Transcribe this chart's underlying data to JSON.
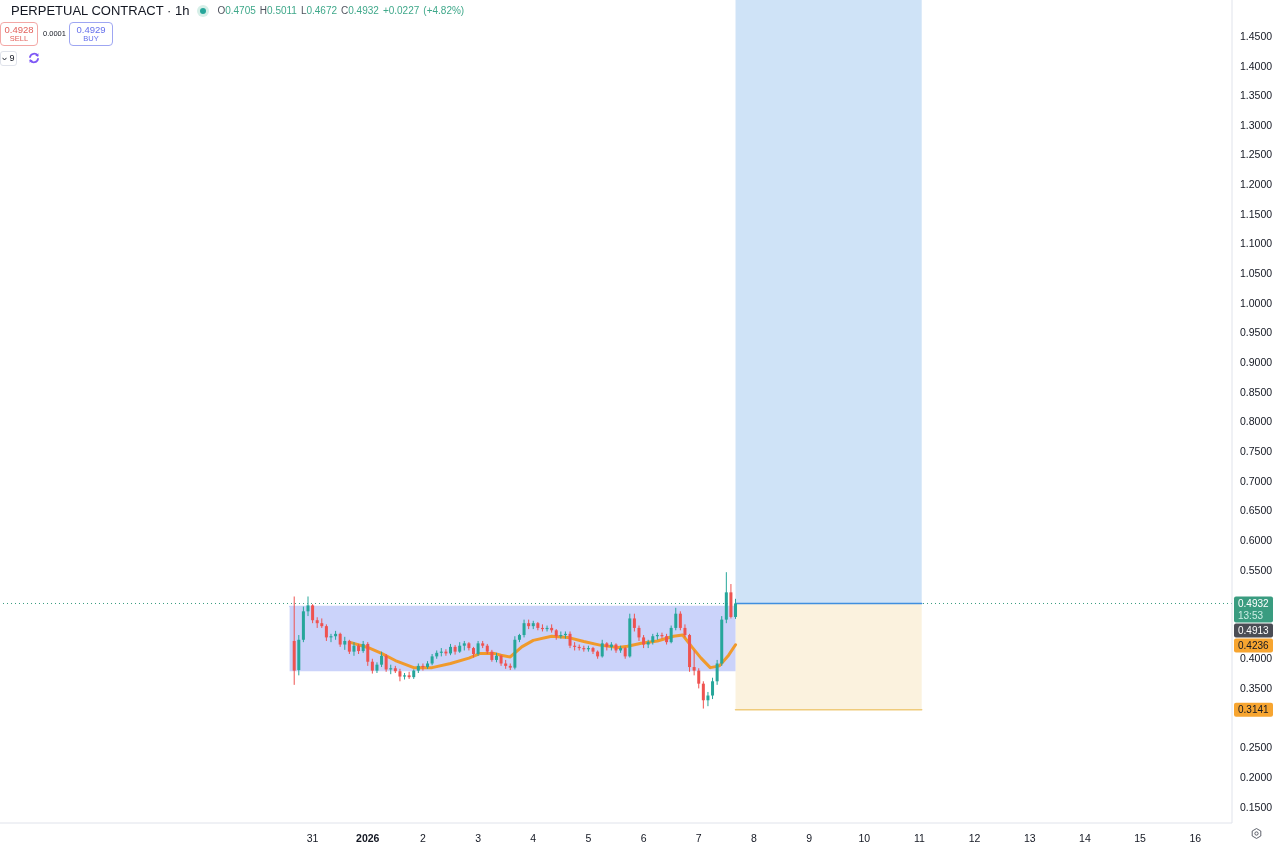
{
  "chart_data": {
    "type": "candlestick",
    "title": "PERPETUAL CONTRACT · 1h",
    "x": [
      "2025-12-30T16:00",
      "2025-12-30T18:00",
      "2025-12-30T20:00",
      "2025-12-30T22:00",
      "2025-12-31T00:00",
      "2025-12-31T02:00",
      "2025-12-31T04:00",
      "2025-12-31T06:00",
      "2025-12-31T08:00",
      "2025-12-31T10:00",
      "2025-12-31T12:00",
      "2025-12-31T14:00",
      "2025-12-31T16:00",
      "2025-12-31T18:00",
      "2025-12-31T20:00",
      "2025-12-31T22:00",
      "2026-01-01T00:00",
      "2026-01-01T02:00",
      "2026-01-01T04:00",
      "2026-01-01T06:00",
      "2026-01-01T08:00",
      "2026-01-01T10:00",
      "2026-01-01T12:00",
      "2026-01-01T14:00",
      "2026-01-01T16:00",
      "2026-01-01T18:00",
      "2026-01-01T20:00",
      "2026-01-01T22:00",
      "2026-01-02T00:00",
      "2026-01-02T02:00",
      "2026-01-02T04:00",
      "2026-01-02T06:00",
      "2026-01-02T08:00",
      "2026-01-02T10:00",
      "2026-01-02T12:00",
      "2026-01-02T14:00",
      "2026-01-02T16:00",
      "2026-01-02T18:00",
      "2026-01-02T20:00",
      "2026-01-02T22:00",
      "2026-01-03T00:00",
      "2026-01-03T02:00",
      "2026-01-03T04:00",
      "2026-01-03T06:00",
      "2026-01-03T08:00",
      "2026-01-03T10:00",
      "2026-01-03T12:00",
      "2026-01-03T14:00",
      "2026-01-03T16:00",
      "2026-01-03T18:00",
      "2026-01-03T20:00",
      "2026-01-03T22:00",
      "2026-01-04T00:00",
      "2026-01-04T02:00",
      "2026-01-04T04:00",
      "2026-01-04T06:00",
      "2026-01-04T08:00",
      "2026-01-04T10:00",
      "2026-01-04T12:00",
      "2026-01-04T14:00",
      "2026-01-04T16:00",
      "2026-01-04T18:00",
      "2026-01-04T20:00",
      "2026-01-04T22:00",
      "2026-01-05T00:00",
      "2026-01-05T02:00",
      "2026-01-05T04:00",
      "2026-01-05T06:00",
      "2026-01-05T08:00",
      "2026-01-05T10:00",
      "2026-01-05T12:00",
      "2026-01-05T14:00",
      "2026-01-05T16:00",
      "2026-01-05T18:00",
      "2026-01-05T20:00",
      "2026-01-05T22:00",
      "2026-01-06T00:00",
      "2026-01-06T02:00",
      "2026-01-06T04:00",
      "2026-01-06T06:00",
      "2026-01-06T08:00",
      "2026-01-06T10:00",
      "2026-01-06T12:00",
      "2026-01-06T14:00",
      "2026-01-06T16:00",
      "2026-01-06T18:00",
      "2026-01-06T20:00",
      "2026-01-06T22:00",
      "2026-01-07T00:00",
      "2026-01-07T02:00",
      "2026-01-07T04:00",
      "2026-01-07T06:00",
      "2026-01-07T08:00",
      "2026-01-07T10:00",
      "2026-01-07T12:00",
      "2026-01-07T14:00",
      "2026-01-07T16:00"
    ],
    "ohlc": [
      [
        0.43,
        0.505,
        0.356,
        0.38
      ],
      [
        0.381,
        0.44,
        0.372,
        0.432
      ],
      [
        0.432,
        0.488,
        0.428,
        0.48
      ],
      [
        0.48,
        0.505,
        0.472,
        0.49
      ],
      [
        0.49,
        0.492,
        0.46,
        0.465
      ],
      [
        0.465,
        0.47,
        0.452,
        0.46
      ],
      [
        0.46,
        0.468,
        0.452,
        0.455
      ],
      [
        0.455,
        0.458,
        0.43,
        0.436
      ],
      [
        0.436,
        0.442,
        0.428,
        0.438
      ],
      [
        0.438,
        0.447,
        0.432,
        0.442
      ],
      [
        0.442,
        0.444,
        0.42,
        0.424
      ],
      [
        0.424,
        0.437,
        0.415,
        0.43
      ],
      [
        0.43,
        0.432,
        0.408,
        0.412
      ],
      [
        0.412,
        0.428,
        0.405,
        0.422
      ],
      [
        0.422,
        0.425,
        0.408,
        0.413
      ],
      [
        0.413,
        0.43,
        0.41,
        0.425
      ],
      [
        0.425,
        0.428,
        0.388,
        0.395
      ],
      [
        0.395,
        0.4,
        0.375,
        0.38
      ],
      [
        0.38,
        0.394,
        0.376,
        0.39
      ],
      [
        0.39,
        0.412,
        0.386,
        0.405
      ],
      [
        0.405,
        0.408,
        0.378,
        0.382
      ],
      [
        0.382,
        0.39,
        0.374,
        0.384
      ],
      [
        0.384,
        0.388,
        0.376,
        0.379
      ],
      [
        0.379,
        0.383,
        0.362,
        0.37
      ],
      [
        0.37,
        0.376,
        0.365,
        0.372
      ],
      [
        0.372,
        0.378,
        0.366,
        0.369
      ],
      [
        0.369,
        0.382,
        0.366,
        0.38
      ],
      [
        0.38,
        0.392,
        0.376,
        0.388
      ],
      [
        0.388,
        0.392,
        0.38,
        0.386
      ],
      [
        0.386,
        0.396,
        0.383,
        0.392
      ],
      [
        0.392,
        0.408,
        0.389,
        0.404
      ],
      [
        0.404,
        0.414,
        0.4,
        0.41
      ],
      [
        0.41,
        0.418,
        0.404,
        0.412
      ],
      [
        0.412,
        0.416,
        0.405,
        0.409
      ],
      [
        0.409,
        0.425,
        0.406,
        0.42
      ],
      [
        0.42,
        0.423,
        0.407,
        0.412
      ],
      [
        0.412,
        0.428,
        0.41,
        0.422
      ],
      [
        0.422,
        0.43,
        0.414,
        0.426
      ],
      [
        0.426,
        0.428,
        0.414,
        0.418
      ],
      [
        0.418,
        0.42,
        0.402,
        0.408
      ],
      [
        0.408,
        0.43,
        0.405,
        0.426
      ],
      [
        0.426,
        0.43,
        0.418,
        0.422
      ],
      [
        0.422,
        0.425,
        0.408,
        0.412
      ],
      [
        0.412,
        0.415,
        0.395,
        0.398
      ],
      [
        0.398,
        0.41,
        0.394,
        0.405
      ],
      [
        0.405,
        0.407,
        0.388,
        0.392
      ],
      [
        0.392,
        0.398,
        0.383,
        0.388
      ],
      [
        0.388,
        0.392,
        0.381,
        0.385
      ],
      [
        0.385,
        0.438,
        0.382,
        0.432
      ],
      [
        0.432,
        0.442,
        0.428,
        0.44
      ],
      [
        0.44,
        0.466,
        0.436,
        0.46
      ],
      [
        0.46,
        0.466,
        0.45,
        0.455
      ],
      [
        0.455,
        0.464,
        0.45,
        0.46
      ],
      [
        0.46,
        0.462,
        0.448,
        0.452
      ],
      [
        0.452,
        0.458,
        0.446,
        0.45
      ],
      [
        0.45,
        0.456,
        0.446,
        0.452
      ],
      [
        0.452,
        0.458,
        0.444,
        0.448
      ],
      [
        0.448,
        0.45,
        0.432,
        0.438
      ],
      [
        0.438,
        0.446,
        0.434,
        0.44
      ],
      [
        0.44,
        0.446,
        0.434,
        0.442
      ],
      [
        0.442,
        0.446,
        0.418,
        0.422
      ],
      [
        0.422,
        0.428,
        0.414,
        0.42
      ],
      [
        0.42,
        0.424,
        0.414,
        0.418
      ],
      [
        0.418,
        0.422,
        0.412,
        0.416
      ],
      [
        0.416,
        0.422,
        0.412,
        0.418
      ],
      [
        0.418,
        0.42,
        0.408,
        0.412
      ],
      [
        0.412,
        0.414,
        0.4,
        0.404
      ],
      [
        0.404,
        0.432,
        0.402,
        0.426
      ],
      [
        0.426,
        0.428,
        0.414,
        0.42
      ],
      [
        0.42,
        0.428,
        0.414,
        0.424
      ],
      [
        0.424,
        0.426,
        0.41,
        0.414
      ],
      [
        0.414,
        0.422,
        0.41,
        0.418
      ],
      [
        0.418,
        0.42,
        0.4,
        0.404
      ],
      [
        0.404,
        0.476,
        0.402,
        0.468
      ],
      [
        0.468,
        0.476,
        0.446,
        0.452
      ],
      [
        0.452,
        0.456,
        0.43,
        0.436
      ],
      [
        0.436,
        0.44,
        0.418,
        0.424
      ],
      [
        0.424,
        0.432,
        0.418,
        0.428
      ],
      [
        0.428,
        0.442,
        0.424,
        0.438
      ],
      [
        0.438,
        0.444,
        0.432,
        0.44
      ],
      [
        0.44,
        0.444,
        0.434,
        0.438
      ],
      [
        0.438,
        0.442,
        0.424,
        0.428
      ],
      [
        0.428,
        0.456,
        0.426,
        0.452
      ],
      [
        0.452,
        0.486,
        0.448,
        0.476
      ],
      [
        0.476,
        0.48,
        0.448,
        0.452
      ],
      [
        0.452,
        0.458,
        0.436,
        0.44
      ],
      [
        0.44,
        0.442,
        0.378,
        0.386
      ],
      [
        0.386,
        0.414,
        0.372,
        0.38
      ],
      [
        0.38,
        0.384,
        0.35,
        0.358
      ],
      [
        0.358,
        0.362,
        0.316,
        0.33
      ],
      [
        0.33,
        0.344,
        0.32,
        0.338
      ],
      [
        0.338,
        0.368,
        0.332,
        0.362
      ],
      [
        0.362,
        0.398,
        0.356,
        0.392
      ],
      [
        0.392,
        0.472,
        0.388,
        0.466
      ],
      [
        0.466,
        0.546,
        0.46,
        0.512
      ],
      [
        0.512,
        0.526,
        0.468,
        0.4705
      ],
      [
        0.4705,
        0.5011,
        0.4672,
        0.4932
      ]
    ],
    "series": [
      {
        "type": "line",
        "color": "#f09a2c",
        "x": [
          "2025-12-31T16:00",
          "2026-01-01T00:00",
          "2026-01-01T06:00",
          "2026-01-01T12:00",
          "2026-01-01T20:00",
          "2026-01-02T04:00",
          "2026-01-02T12:00",
          "2026-01-02T20:00",
          "2026-01-03T01:00",
          "2026-01-03T07:00",
          "2026-01-03T10:00",
          "2026-01-03T14:00",
          "2026-01-03T19:00",
          "2026-01-04T00:00",
          "2026-01-04T08:00",
          "2026-01-04T15:00",
          "2026-01-04T22:00",
          "2026-01-05T05:00",
          "2026-01-05T13:00",
          "2026-01-05T17:00",
          "2026-01-05T23:00",
          "2026-01-06T06:00",
          "2026-01-06T13:00",
          "2026-01-06T17:00",
          "2026-01-06T21:00",
          "2026-01-07T01:00",
          "2026-01-07T05:00",
          "2026-01-07T09:00",
          "2026-01-07T13:00",
          "2026-01-07T16:00"
        ],
        "values": [
          0.428,
          0.419,
          0.409,
          0.397,
          0.385,
          0.385,
          0.392,
          0.401,
          0.409,
          0.409,
          0.406,
          0.403,
          0.42,
          0.431,
          0.438,
          0.436,
          0.429,
          0.423,
          0.419,
          0.421,
          0.426,
          0.43,
          0.438,
          0.44,
          0.42,
          0.401,
          0.385,
          0.388,
          0.406,
          0.4236
        ]
      },
      {
        "type": "line",
        "color": "#3f8fdf",
        "x": [
          "2026-01-07T16:00",
          "2026-01-11T01:00"
        ],
        "values": [
          0.4932,
          0.4932
        ],
        "lower": [
          0.4932,
          0.4932
        ],
        "upper": [
          1.511,
          1.511
        ]
      },
      {
        "type": "line",
        "color": "#efcb7b",
        "x": [
          "2026-01-07T16:00",
          "2026-01-11T01:00"
        ],
        "values": [
          0.3141,
          0.3141
        ],
        "lower": [
          0.3141,
          0.3141
        ],
        "upper": [
          0.4932,
          0.4932
        ]
      },
      {
        "type": "line",
        "color": "#cbd3fa",
        "x": [
          "2025-12-30T14:00",
          "2026-01-07T16:00"
        ],
        "values": [
          0.488,
          0.488
        ],
        "lower": [
          0.379,
          0.379
        ],
        "upper": [
          0.488,
          0.488
        ]
      }
    ],
    "xlim": [
      "2025-12-25T08:00",
      "2026-01-16T16:00"
    ],
    "xticks": [
      {
        "value": "2025-12-31",
        "label": "31"
      },
      {
        "value": "2026-01-01",
        "label": "2026"
      },
      {
        "value": "2026-01-02",
        "label": "2"
      },
      {
        "value": "2026-01-03",
        "label": "3"
      },
      {
        "value": "2026-01-04",
        "label": "4"
      },
      {
        "value": "2026-01-05",
        "label": "5"
      },
      {
        "value": "2026-01-06",
        "label": "6"
      },
      {
        "value": "2026-01-07",
        "label": "7"
      },
      {
        "value": "2026-01-08",
        "label": "8"
      },
      {
        "value": "2026-01-09",
        "label": "9"
      },
      {
        "value": "2026-01-10",
        "label": "10"
      },
      {
        "value": "2026-01-11",
        "label": "11"
      },
      {
        "value": "2026-01-12",
        "label": "12"
      },
      {
        "value": "2026-01-13",
        "label": "13"
      },
      {
        "value": "2026-01-14",
        "label": "14"
      },
      {
        "value": "2026-01-15",
        "label": "15"
      },
      {
        "value": "2026-01-16",
        "label": "16"
      }
    ],
    "ylim": [
      0.123,
      1.511
    ],
    "yticks": [
      {
        "value": 0.15,
        "label": "0.1500"
      },
      {
        "value": 0.2,
        "label": "0.2000"
      },
      {
        "value": 0.25,
        "label": "0.2500"
      },
      {
        "value": 0.35,
        "label": "0.3500"
      },
      {
        "value": 0.4,
        "label": "0.4000"
      },
      {
        "value": 0.55,
        "label": "0.5500"
      },
      {
        "value": 0.6,
        "label": "0.6000"
      },
      {
        "value": 0.65,
        "label": "0.6500"
      },
      {
        "value": 0.7,
        "label": "0.7000"
      },
      {
        "value": 0.75,
        "label": "0.7500"
      },
      {
        "value": 0.8,
        "label": "0.8000"
      },
      {
        "value": 0.85,
        "label": "0.8500"
      },
      {
        "value": 0.9,
        "label": "0.9000"
      },
      {
        "value": 0.95,
        "label": "0.9500"
      },
      {
        "value": 1.0,
        "label": "1.0000"
      },
      {
        "value": 1.05,
        "label": "1.0500"
      },
      {
        "value": 1.1,
        "label": "1.1000"
      },
      {
        "value": 1.15,
        "label": "1.1500"
      },
      {
        "value": 1.2,
        "label": "1.2000"
      },
      {
        "value": 1.25,
        "label": "1.2500"
      },
      {
        "value": 1.3,
        "label": "1.3000"
      },
      {
        "value": 1.35,
        "label": "1.3500"
      },
      {
        "value": 1.4,
        "label": "1.4000"
      },
      {
        "value": 1.45,
        "label": "1.4500"
      }
    ],
    "ref_lines": [
      {
        "axis": "y",
        "value": 0.4932,
        "label": "0.4932",
        "color": "#3a9c80",
        "line_style": "dotted"
      }
    ],
    "annotations": [
      "O0.4705 H0.5011 L0.4672 C0.4932 +0.0227 (+4.82%)",
      "0.4928",
      "SELL",
      "0.0001",
      "0.4929",
      "BUY",
      "9",
      "13:53",
      "0.4913",
      {
        "text": "0.4236",
        "y": 0.4236
      },
      {
        "text": "0.3141",
        "y": 0.3141
      }
    ]
  }
}
